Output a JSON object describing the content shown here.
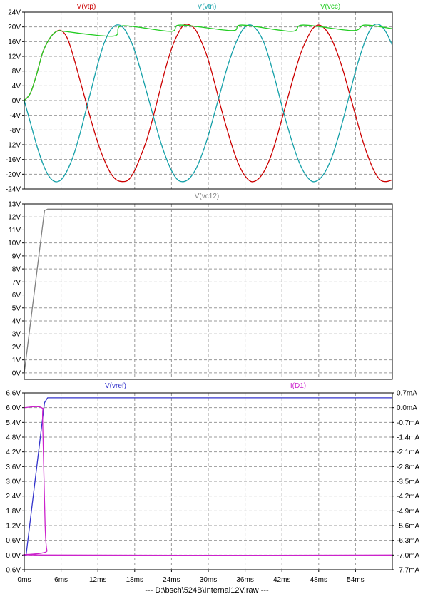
{
  "footer": {
    "label": "---  D:\\bsch\\524B\\Internal12V.raw  ---"
  },
  "x_axis": {
    "domain": [
      0,
      60
    ],
    "ticks": [
      0,
      6,
      12,
      18,
      24,
      30,
      36,
      42,
      48,
      54
    ],
    "tick_labels": [
      "0ms",
      "6ms",
      "12ms",
      "18ms",
      "24ms",
      "30ms",
      "36ms",
      "42ms",
      "48ms",
      "54ms"
    ]
  },
  "chart_data": [
    {
      "type": "line",
      "grid": true,
      "ylim": [
        -24,
        24
      ],
      "y_ticks": [
        24,
        20,
        16,
        12,
        8,
        4,
        0,
        -4,
        -8,
        -12,
        -16,
        -20,
        -24
      ],
      "y_tick_labels": [
        "24V",
        "20V",
        "16V",
        "12V",
        "8V",
        "4V",
        "0V",
        "-4V",
        "-8V",
        "-12V",
        "-16V",
        "-20V",
        "-24V"
      ],
      "series": [
        {
          "name": "V(vtp)",
          "color": "#cc0000",
          "x": [
            0,
            1,
            2,
            3,
            4,
            5,
            6,
            7,
            8,
            9,
            10,
            11,
            12,
            13,
            14,
            15,
            16,
            17,
            18,
            19,
            20,
            21,
            22,
            23,
            24,
            25,
            26,
            27,
            28,
            29,
            30,
            31,
            32,
            33,
            34,
            35,
            36,
            37,
            38,
            39,
            40,
            41,
            42,
            43,
            44,
            45,
            46,
            47,
            48,
            49,
            50,
            51,
            52,
            53,
            54,
            55,
            56,
            57,
            58,
            59,
            60
          ],
          "values": [
            0,
            2,
            7,
            13,
            16.5,
            18.5,
            19,
            17,
            12,
            6,
            0,
            -6,
            -11.5,
            -16,
            -19.5,
            -21.5,
            -22,
            -21.5,
            -19,
            -15,
            -10.5,
            -4.5,
            2,
            8.5,
            14,
            18,
            20.5,
            20.5,
            19,
            15.5,
            11,
            5,
            -1.5,
            -7.5,
            -13,
            -17.5,
            -20.5,
            -22,
            -21.5,
            -19.5,
            -16,
            -11,
            -5,
            1,
            7,
            12.5,
            16.5,
            19.5,
            20.5,
            19.5,
            17,
            13,
            8,
            2,
            -4,
            -10,
            -15,
            -19,
            -21.5,
            -22,
            -21.5
          ]
        },
        {
          "name": "V(vtn)",
          "color": "#14a0a8",
          "x": [
            0,
            1,
            2,
            3,
            4,
            5,
            6,
            7,
            8,
            9,
            10,
            11,
            12,
            13,
            14,
            15,
            16,
            17,
            18,
            19,
            20,
            21,
            22,
            23,
            24,
            25,
            26,
            27,
            28,
            29,
            30,
            31,
            32,
            33,
            34,
            35,
            36,
            37,
            38,
            39,
            40,
            41,
            42,
            43,
            44,
            45,
            46,
            47,
            48,
            49,
            50,
            51,
            52,
            53,
            54,
            55,
            56,
            57,
            58,
            59,
            60
          ],
          "values": [
            0,
            -6,
            -12,
            -17,
            -20.5,
            -22,
            -21.5,
            -19,
            -15,
            -9.5,
            -3,
            3.5,
            10,
            15.5,
            19,
            20.5,
            20,
            17.5,
            13.5,
            8,
            2,
            -4,
            -10,
            -15,
            -19,
            -21.5,
            -22,
            -21,
            -18.5,
            -14.5,
            -9.5,
            -3.5,
            2.5,
            8.5,
            13.5,
            17.5,
            20,
            20.5,
            19,
            16,
            11,
            5,
            -1.5,
            -7.5,
            -13,
            -17.5,
            -20.5,
            -22,
            -21.5,
            -19.5,
            -16,
            -11,
            -5,
            1.5,
            8,
            13.5,
            18,
            20.5,
            20.5,
            18.5,
            15
          ]
        },
        {
          "name": "V(vcc)",
          "color": "#22cc22",
          "x": [
            0,
            1,
            2,
            3,
            4,
            5,
            5.8,
            6.5,
            14.5,
            16,
            23.8,
            25.5,
            33.8,
            35.5,
            43.5,
            45.5,
            53.5,
            55.5,
            60
          ],
          "values": [
            0,
            2,
            7,
            13,
            16.5,
            18.5,
            19,
            18.8,
            17.5,
            20.3,
            18.8,
            20.5,
            19.0,
            20.5,
            18.8,
            20.5,
            19.0,
            20.5,
            19.5
          ]
        }
      ]
    },
    {
      "type": "line",
      "grid": true,
      "ylim": [
        -0.5,
        13
      ],
      "y_ticks": [
        13,
        12,
        11,
        10,
        9,
        8,
        7,
        6,
        5,
        4,
        3,
        2,
        1,
        0
      ],
      "y_tick_labels": [
        "13V",
        "12V",
        "11V",
        "10V",
        "9V",
        "8V",
        "7V",
        "6V",
        "5V",
        "4V",
        "3V",
        "2V",
        "1V",
        "0V"
      ],
      "series": [
        {
          "name": "V(vc12)",
          "color": "#808080",
          "x": [
            0,
            3.3,
            3.8,
            60
          ],
          "values": [
            0,
            12.5,
            12.6,
            12.6
          ]
        }
      ]
    },
    {
      "type": "line",
      "grid": true,
      "ylim": [
        -0.6,
        6.6
      ],
      "y_ticks": [
        6.6,
        6.0,
        5.4,
        4.8,
        4.2,
        3.6,
        3.0,
        2.4,
        1.8,
        1.2,
        0.6,
        0.0,
        -0.6
      ],
      "y_tick_labels": [
        "6.6V",
        "6.0V",
        "5.4V",
        "4.8V",
        "4.2V",
        "3.6V",
        "3.0V",
        "2.4V",
        "1.8V",
        "1.2V",
        "0.6V",
        "0.0V",
        "-0.6V"
      ],
      "y2lim": [
        -7.7,
        0.7
      ],
      "y2_ticks": [
        0.7,
        0.0,
        -0.7,
        -1.4,
        -2.1,
        -2.8,
        -3.5,
        -4.2,
        -4.9,
        -5.6,
        -6.3,
        -7.0,
        -7.7
      ],
      "y2_tick_labels": [
        "0.7mA",
        "0.0mA",
        "-0.7mA",
        "-1.4mA",
        "-2.1mA",
        "-2.8mA",
        "-3.5mA",
        "-4.2mA",
        "-4.9mA",
        "-5.6mA",
        "-6.3mA",
        "-7.0mA",
        "-7.7mA"
      ],
      "series": [
        {
          "name": "V(vref)",
          "color": "#3333cc",
          "axis": "left",
          "x": [
            0,
            0.3,
            3.3,
            3.8,
            60
          ],
          "values": [
            0,
            0,
            6.2,
            6.4,
            6.4
          ]
        },
        {
          "name": "I(D1)",
          "color": "#cc22cc",
          "axis": "right",
          "x": [
            0,
            2.8,
            3.0,
            3.4,
            3.7,
            4.1,
            60
          ],
          "values": [
            0,
            0,
            -0.7,
            -5.6,
            -6.8,
            -7.0,
            -7.0
          ]
        }
      ]
    }
  ]
}
